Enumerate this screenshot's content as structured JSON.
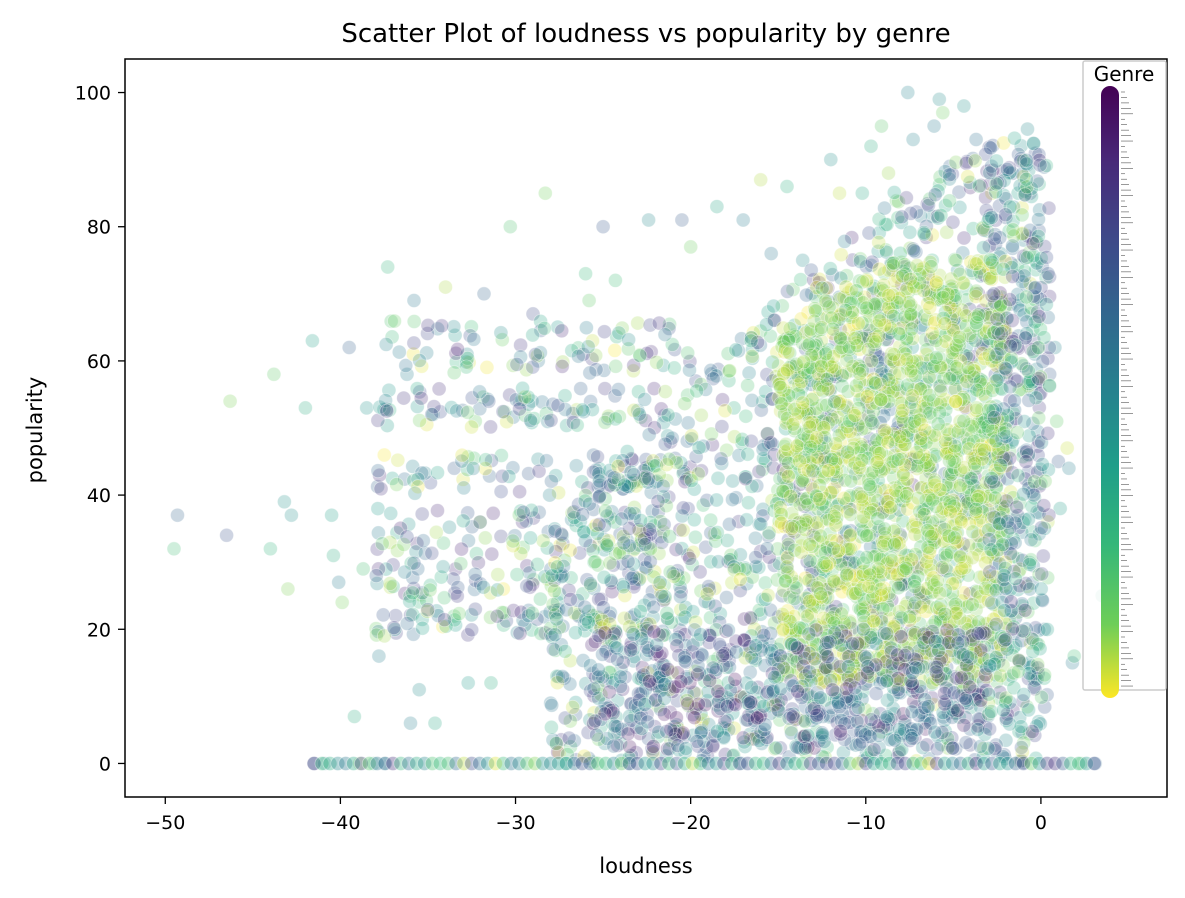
{
  "chart_data": {
    "type": "scatter",
    "title": "Scatter Plot of loudness vs popularity by genre",
    "xlabel": "loudness",
    "ylabel": "popularity",
    "xlim": [
      -52.3,
      7.2
    ],
    "ylim": [
      -5,
      105
    ],
    "x_ticks": [
      -50,
      -40,
      -30,
      -20,
      -10,
      0
    ],
    "y_ticks": [
      0,
      20,
      40,
      60,
      80,
      100
    ],
    "grid": false,
    "colormap": "viridis",
    "point_alpha": 0.25,
    "legend": {
      "title": "Genre",
      "placement": "upper right",
      "note": "colorbar-style legend of genre categories, purple at top to yellow at bottom"
    },
    "colors": {
      "low": "#440154",
      "mid": "#21918c",
      "high": "#fde725"
    },
    "series": [
      {
        "points": [
          [
            -49.5,
            32
          ],
          [
            -49.3,
            37
          ],
          [
            -46.5,
            34
          ],
          [
            -46.3,
            54
          ],
          [
            -44.0,
            32
          ],
          [
            -43.8,
            58
          ],
          [
            -43.2,
            39
          ],
          [
            -43.0,
            26
          ],
          [
            -42.8,
            37
          ],
          [
            -42.0,
            53
          ],
          [
            -41.6,
            63
          ],
          [
            -41.5,
            0
          ],
          [
            -40.9,
            0
          ],
          [
            -40.5,
            37
          ],
          [
            -40.4,
            31
          ],
          [
            -40.1,
            27
          ],
          [
            -39.9,
            24
          ],
          [
            -39.5,
            62
          ],
          [
            -39.2,
            7
          ],
          [
            -38.9,
            0
          ],
          [
            -38.7,
            29
          ],
          [
            -38.5,
            53
          ],
          [
            -38.1,
            0
          ],
          [
            -37.8,
            16
          ],
          [
            -37.5,
            0
          ],
          [
            -37.3,
            74
          ],
          [
            -36.2,
            58
          ],
          [
            -36.0,
            6
          ],
          [
            -35.8,
            69
          ],
          [
            -35.5,
            11
          ],
          [
            -34.6,
            6
          ],
          [
            -34.0,
            71
          ],
          [
            -33.5,
            44
          ],
          [
            -32.7,
            12
          ],
          [
            -32.3,
            51
          ],
          [
            -31.8,
            70
          ],
          [
            -31.4,
            12
          ],
          [
            -30.7,
            26
          ],
          [
            -30.3,
            80
          ],
          [
            -29.0,
            67
          ],
          [
            -28.7,
            60
          ],
          [
            -28.3,
            85
          ],
          [
            -28.0,
            9
          ],
          [
            -27.7,
            3
          ],
          [
            -26.0,
            73
          ],
          [
            -25.8,
            69
          ],
          [
            -25.0,
            80
          ],
          [
            -24.3,
            72
          ],
          [
            -24.0,
            3
          ],
          [
            -23.5,
            0
          ],
          [
            -22.4,
            81
          ],
          [
            -20.5,
            81
          ],
          [
            -20.0,
            77
          ],
          [
            -19.7,
            57
          ],
          [
            -18.5,
            83
          ],
          [
            -17.0,
            81
          ],
          [
            -16.0,
            87
          ],
          [
            -15.4,
            76
          ],
          [
            -14.5,
            86
          ],
          [
            -13.6,
            75
          ],
          [
            -12.0,
            90
          ],
          [
            -11.5,
            85
          ],
          [
            -10.2,
            85
          ],
          [
            -9.7,
            92
          ],
          [
            -9.1,
            95
          ],
          [
            -8.7,
            88
          ],
          [
            -7.6,
            100
          ],
          [
            -7.3,
            93
          ],
          [
            -6.1,
            95
          ],
          [
            -5.8,
            99
          ],
          [
            -5.6,
            97
          ],
          [
            -5.2,
            89
          ],
          [
            -4.4,
            98
          ],
          [
            -3.7,
            93
          ],
          [
            -2.8,
            85
          ],
          [
            -2.3,
            76
          ],
          [
            -1.8,
            88
          ],
          [
            -1.3,
            85
          ],
          [
            -1.0,
            78
          ],
          [
            -0.3,
            75
          ],
          [
            -0.2,
            66
          ],
          [
            0.5,
            58
          ],
          [
            0.8,
            62
          ],
          [
            0.9,
            51
          ],
          [
            1.0,
            45
          ],
          [
            1.1,
            38
          ],
          [
            1.5,
            47
          ],
          [
            1.6,
            44
          ],
          [
            1.8,
            15
          ],
          [
            1.9,
            16
          ],
          [
            2.3,
            0
          ],
          [
            3.1,
            0
          ],
          [
            3.5,
            25
          ],
          [
            -0.1,
            55
          ],
          [
            0.4,
            36
          ],
          [
            0.2,
            20
          ]
        ]
      }
    ]
  }
}
